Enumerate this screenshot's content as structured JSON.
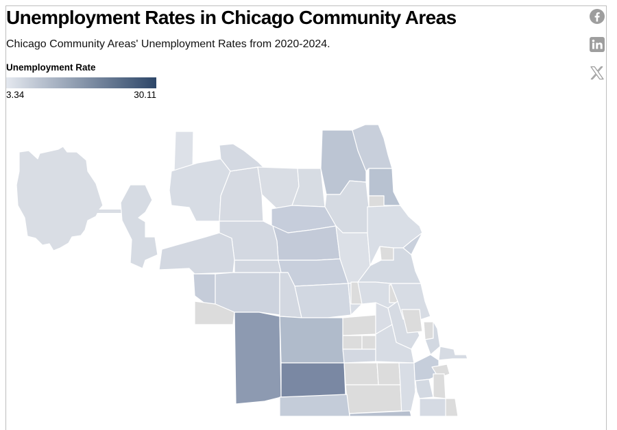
{
  "title": "Unemployment Rates in Chicago Community Areas",
  "subtitle": "Chicago Community Areas' Unemployment Rates from 2020-2024.",
  "legend": {
    "title": "Unemployment Rate",
    "min": "3.34",
    "max": "30.11",
    "color_low": "#e4e8ef",
    "color_high": "#2d4668",
    "no_data_color": "#dcdcdc"
  },
  "share": {
    "icons": [
      "facebook-icon",
      "linkedin-icon",
      "x-icon"
    ],
    "icon_color": "#9e9e9e"
  }
}
